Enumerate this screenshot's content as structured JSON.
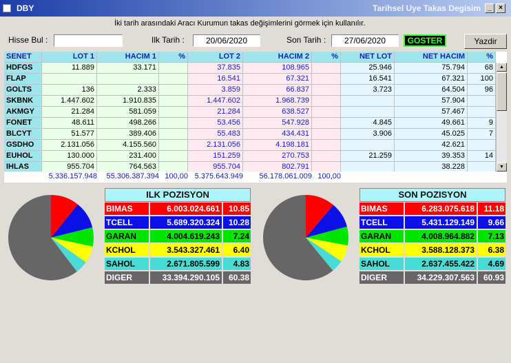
{
  "window": {
    "icon": "app-icon",
    "title": "DBY",
    "right_title": "Tarihsel Uye Takas Degisim"
  },
  "info_text": "İki tarih arasındaki  Aracı Kurumun takas değişimlerini görmek için kullanılır.",
  "form": {
    "hisse_label": "Hisse Bul :",
    "hisse_value": "",
    "ilk_label": "Ilk Tarih :",
    "ilk_value": "20/06/2020",
    "son_label": "Son Tarih :",
    "son_value": "27/06/2020",
    "goster_label": "GOSTER",
    "yazdir_label": "Yazdir"
  },
  "table": {
    "headers": [
      "SENET",
      "LOT 1",
      "HACIM 1",
      "%",
      "LOT 2",
      "HACIM 2",
      "%",
      "NET LOT",
      "NET HACIM",
      "%"
    ],
    "rows": [
      [
        "HDFGS",
        "11.889",
        "33.171",
        "",
        "37.835",
        "108.965",
        "",
        "25.946",
        "75.794",
        "68"
      ],
      [
        "FLAP",
        "",
        "",
        "",
        "16.541",
        "67.321",
        "",
        "16.541",
        "67.321",
        "100"
      ],
      [
        "GOLTS",
        "136",
        "2.333",
        "",
        "3.859",
        "66.837",
        "",
        "3.723",
        "64.504",
        "96"
      ],
      [
        "SKBNK",
        "1.447.602",
        "1.910.835",
        "",
        "1.447.602",
        "1.968.739",
        "",
        "",
        "57.904",
        ""
      ],
      [
        "AKMGY",
        "21.284",
        "581.059",
        "",
        "21.284",
        "638.527",
        "",
        "",
        "57.467",
        ""
      ],
      [
        "FONET",
        "48.611",
        "498.266",
        "",
        "53.456",
        "547.928",
        "",
        "4.845",
        "49.661",
        "9"
      ],
      [
        "BLCYT",
        "51.577",
        "389.406",
        "",
        "55.483",
        "434.431",
        "",
        "3.906",
        "45.025",
        "7"
      ],
      [
        "GSDHO",
        "2.131.056",
        "4.155.560",
        "",
        "2.131.056",
        "4.198.181",
        "",
        "",
        "42.621",
        ""
      ],
      [
        "EUHOL",
        "130.000",
        "231.400",
        "",
        "151.259",
        "270.753",
        "",
        "21.259",
        "39.353",
        "14"
      ],
      [
        "IHLAS",
        "955.704",
        "764.563",
        "",
        "955.704",
        "802.791",
        "",
        "",
        "38.228",
        ""
      ]
    ],
    "totals": {
      "lot1": "5.336.157.948",
      "hacim1": "55.306.387.394",
      "pct1": "100,00",
      "lot2": "5.375.643.949",
      "hacim2": "56.178.061.009",
      "pct2": "100,00"
    }
  },
  "ilk_pozisyon": {
    "title": "ILK POZISYON",
    "rows": [
      {
        "name": "BIMAS",
        "value": "6.003.024.661",
        "pct": "10.85",
        "color": "#ff0000",
        "text": "#ffffff"
      },
      {
        "name": "TCELL",
        "value": "5.689.320.324",
        "pct": "10.28",
        "color": "#0a10e6",
        "text": "#ffffff"
      },
      {
        "name": "GARAN",
        "value": "4.004.619.243",
        "pct": "7.24",
        "color": "#00e400",
        "text": "#000000"
      },
      {
        "name": "KCHOL",
        "value": "3.543.327.461",
        "pct": "6.40",
        "color": "#ffff00",
        "text": "#000000"
      },
      {
        "name": "SAHOL",
        "value": "2.671.805.599",
        "pct": "4.83",
        "color": "#48dcd4",
        "text": "#000000"
      },
      {
        "name": "DIGER",
        "value": "33.394.290.105",
        "pct": "60.38",
        "color": "#666666",
        "text": "#ffffff"
      }
    ]
  },
  "son_pozisyon": {
    "title": "SON POZISYON",
    "rows": [
      {
        "name": "BIMAS",
        "value": "6.283.075.618",
        "pct": "11.18",
        "color": "#ff0000",
        "text": "#ffffff"
      },
      {
        "name": "TCELL",
        "value": "5.431.129.149",
        "pct": "9.66",
        "color": "#0a10e6",
        "text": "#ffffff"
      },
      {
        "name": "GARAN",
        "value": "4.008.964.882",
        "pct": "7.13",
        "color": "#00e400",
        "text": "#000000"
      },
      {
        "name": "KCHOL",
        "value": "3.588.128.373",
        "pct": "6.38",
        "color": "#ffff00",
        "text": "#000000"
      },
      {
        "name": "SAHOL",
        "value": "2.637.455.422",
        "pct": "4.69",
        "color": "#48dcd4",
        "text": "#000000"
      },
      {
        "name": "DIGER",
        "value": "34.229.307.563",
        "pct": "60.93",
        "color": "#666666",
        "text": "#ffffff"
      }
    ]
  }
}
